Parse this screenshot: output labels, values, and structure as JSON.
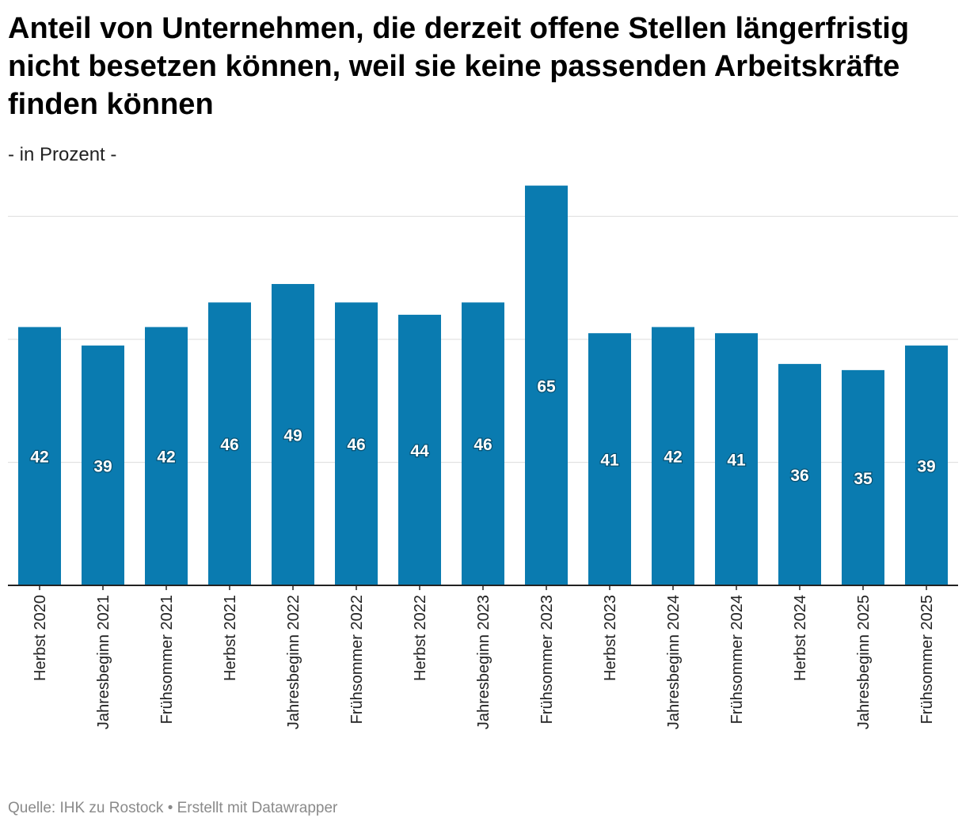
{
  "title": "Anteil von Unternehmen, die derzeit offene Stellen längerfristig nicht besetzen können, weil sie keine passenden Arbeitskräfte finden können",
  "subtitle": "- in Prozent -",
  "source": "Quelle: IHK zu Rostock • Erstellt mit Datawrapper",
  "colors": {
    "bar": "#0a7bb0",
    "grid": "#e2e2e2",
    "axis": "#222222"
  },
  "chart_data": {
    "type": "bar",
    "categories": [
      "Herbst 2020",
      "Jahresbeginn 2021",
      "Frühsommer 2021",
      "Herbst 2021",
      "Jahresbeginn 2022",
      "Frühsommer 2022",
      "Herbst 2022",
      "Jahresbeginn 2023",
      "Frühsommer 2023",
      "Herbst 2023",
      "Jahresbeginn 2024",
      "Frühsommer 2024",
      "Herbst 2024",
      "Jahresbeginn 2025",
      "Frühsommer 2025"
    ],
    "values": [
      42,
      39,
      42,
      46,
      49,
      46,
      44,
      46,
      65,
      41,
      42,
      41,
      36,
      35,
      39
    ],
    "ylim": [
      0,
      65
    ],
    "gridlines": [
      20,
      40,
      60
    ],
    "grid": true,
    "data_labels": true,
    "legend": "none"
  }
}
